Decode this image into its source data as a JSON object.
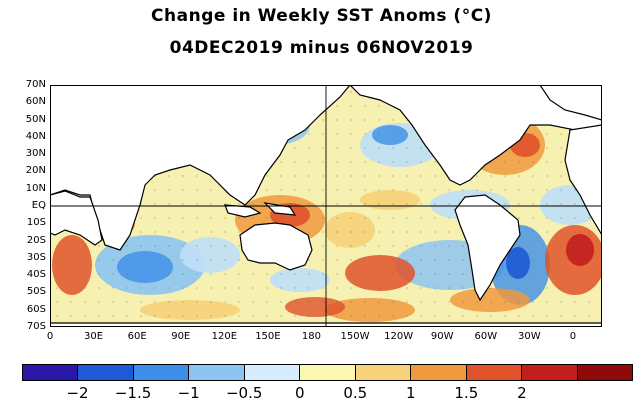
{
  "title": {
    "line1": "Change in Weekly SST Anoms (°C)",
    "line2": "04DEC2019 minus 06NOV2019"
  },
  "map": {
    "lat_labels": [
      "70N",
      "60N",
      "50N",
      "40N",
      "30N",
      "20N",
      "10N",
      "EQ",
      "10S",
      "20S",
      "30S",
      "40S",
      "50S",
      "60S",
      "70S"
    ],
    "lon_labels": [
      "0",
      "30E",
      "60E",
      "90E",
      "120E",
      "150E",
      "180",
      "150W",
      "120W",
      "90W",
      "60W",
      "30W",
      "0"
    ],
    "colors": {
      "ocean_neutral_warm": "#f4f0a8",
      "ocean_neutral_cool": "#dff0ff",
      "land": "#ffffff",
      "coast": "#000000",
      "grid": "#000000"
    }
  },
  "colorbar": {
    "labels": [
      "−2",
      "−1.5",
      "−1",
      "−0.5",
      "0",
      "0.5",
      "1",
      "1.5",
      "2"
    ],
    "colors": [
      "#2a17a6",
      "#1e5ad6",
      "#3d8ee8",
      "#8dc4f2",
      "#d6ecff",
      "#fbf7b0",
      "#f7d27a",
      "#f0993f",
      "#e0532a",
      "#c21e1e",
      "#8e0a0a"
    ]
  }
}
